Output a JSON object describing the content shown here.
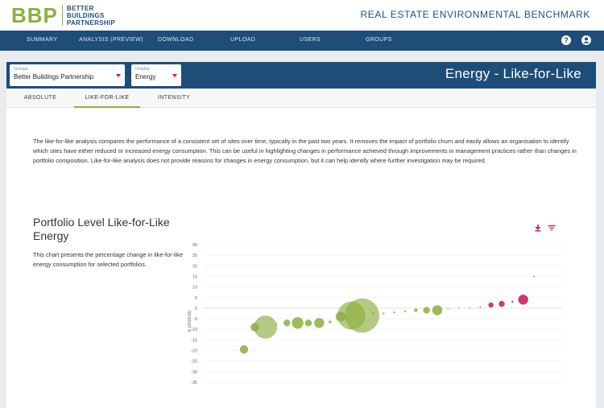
{
  "brand": {
    "mark": "BBP",
    "name_lines": [
      "BETTER",
      "BUILDINGS",
      "PARTNERSHIP"
    ],
    "color": "#8dae3f"
  },
  "app_title": "REAL ESTATE ENVIRONMENTAL BENCHMARK",
  "nav": {
    "items": [
      "SUMMARY",
      "ANALYSIS (PREVIEW)",
      "DOWNLOAD",
      "UPLOAD",
      "USERS",
      "GROUPS"
    ],
    "icons": [
      "help-icon",
      "account-icon"
    ],
    "background": "#1e4d78"
  },
  "filters": {
    "groups": {
      "label": "Groups",
      "value": "Better Buildings Partnership"
    },
    "display": {
      "label": "Display",
      "value": "Energy"
    }
  },
  "page_heading": "Energy - Like-for-Like",
  "tabs": [
    {
      "label": "ABSOLUTE",
      "active": false
    },
    {
      "label": "LIKE-FOR-LIKE",
      "active": true
    },
    {
      "label": "INTENSITY",
      "active": false
    }
  ],
  "intro": "The like-for-like analysis compares the performance of a consistent set of sites over time, typically in the past two years. It removes the impact of portfolio churn and easily allows an organisation to identify which sites have either reduced or increased energy consumption. This can be useful in highlighting changes in performance achieved through improvements in management practices rather than changes in portfolio composition. Like-for-like analysis does not provide reasons for changes in energy consumption, but it can help identify where further investigation may be required.",
  "section": {
    "title": "Portfolio Level Like-for-Like Energy",
    "description": "This chart presents the percentage change in like-for-like energy consumption for selected portfolios.",
    "tools": [
      "download-icon",
      "filter-icon"
    ]
  },
  "chart_data": {
    "type": "scatter",
    "ylabel": "% (2018/19)",
    "ylim": [
      -35,
      30
    ],
    "yticks": [
      30,
      25,
      20,
      15,
      10,
      5,
      0,
      -5,
      -10,
      -15,
      -20,
      -25,
      -30,
      -35
    ],
    "grid": true,
    "colors": {
      "decrease": "#8dae3f",
      "increase": "#c2185b"
    },
    "points": [
      {
        "rank": 1,
        "value": -19.5,
        "size": 5
      },
      {
        "rank": 2,
        "value": -9,
        "size": 5
      },
      {
        "rank": 3,
        "value": -9,
        "size": 14
      },
      {
        "rank": 4,
        "value": -7.5,
        "size": 1
      },
      {
        "rank": 5,
        "value": -7,
        "size": 4
      },
      {
        "rank": 6,
        "value": -7,
        "size": 7
      },
      {
        "rank": 7,
        "value": -7,
        "size": 4
      },
      {
        "rank": 8,
        "value": -7,
        "size": 6
      },
      {
        "rank": 9,
        "value": -6.5,
        "size": 1.5
      },
      {
        "rank": 10,
        "value": -4,
        "size": 6
      },
      {
        "rank": 11,
        "value": -3.5,
        "size": 17
      },
      {
        "rank": 12,
        "value": -3.5,
        "size": 21
      },
      {
        "rank": 13,
        "value": -2.5,
        "size": 1.2
      },
      {
        "rank": 14,
        "value": -2.5,
        "size": 1
      },
      {
        "rank": 15,
        "value": -2,
        "size": 1
      },
      {
        "rank": 16,
        "value": -1.5,
        "size": 1
      },
      {
        "rank": 17,
        "value": -1,
        "size": 2
      },
      {
        "rank": 18,
        "value": -1,
        "size": 4
      },
      {
        "rank": 19,
        "value": -1,
        "size": 6
      },
      {
        "rank": 20,
        "value": -0.5,
        "size": 0.6
      },
      {
        "rank": 21,
        "value": 0,
        "size": 0.6
      },
      {
        "rank": 22,
        "value": 0,
        "size": 0.4
      },
      {
        "rank": 23,
        "value": 0.5,
        "size": 0.6
      },
      {
        "rank": 24,
        "value": 1.5,
        "size": 3
      },
      {
        "rank": 25,
        "value": 2,
        "size": 3.5
      },
      {
        "rank": 26,
        "value": 3,
        "size": 1
      },
      {
        "rank": 27,
        "value": 4,
        "size": 6
      },
      {
        "rank": 28,
        "value": 15,
        "size": 0.5
      }
    ]
  }
}
